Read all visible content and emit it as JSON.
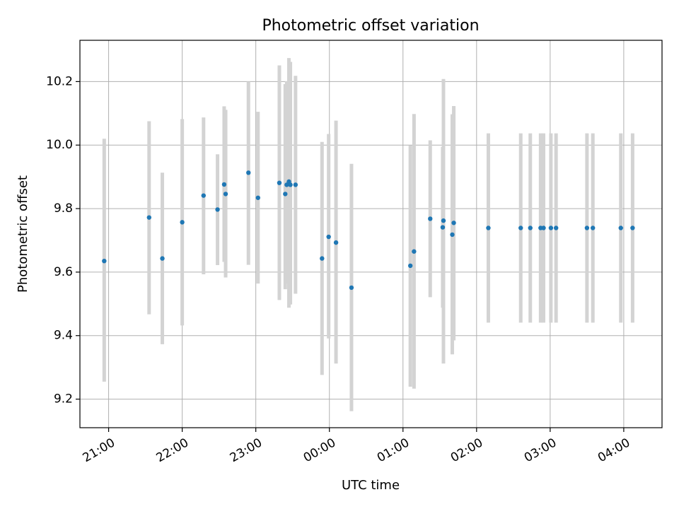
{
  "chart_data": {
    "type": "scatter",
    "title": "Photometric offset variation",
    "xlabel": "UTC time",
    "ylabel": "Photometric offset",
    "x_unit": "hours after 00:00 UTC (negative = previous evening)",
    "xlim": [
      -3.39,
      4.52
    ],
    "ylim": [
      9.11,
      10.33
    ],
    "grid": true,
    "x_ticks": [
      {
        "value": -3,
        "label": "21:00"
      },
      {
        "value": -2,
        "label": "22:00"
      },
      {
        "value": -1,
        "label": "23:00"
      },
      {
        "value": 0,
        "label": "00:00"
      },
      {
        "value": 1,
        "label": "01:00"
      },
      {
        "value": 2,
        "label": "02:00"
      },
      {
        "value": 3,
        "label": "03:00"
      },
      {
        "value": 4,
        "label": "04:00"
      }
    ],
    "y_ticks": [
      {
        "value": 9.2,
        "label": "9.2"
      },
      {
        "value": 9.4,
        "label": "9.4"
      },
      {
        "value": 9.6,
        "label": "9.6"
      },
      {
        "value": 9.8,
        "label": "9.8"
      },
      {
        "value": 10.0,
        "label": "10.0"
      },
      {
        "value": 10.2,
        "label": "10.2"
      }
    ],
    "colors": {
      "points": "#1f77b4",
      "error_bars": "#d3d3d3",
      "grid": "#b0b0b0"
    },
    "series": [
      {
        "points": [
          {
            "x": -3.06,
            "y": 9.635,
            "ylo": 9.255,
            "yhi": 10.02
          },
          {
            "x": -2.45,
            "y": 9.772,
            "ylo": 9.467,
            "yhi": 10.075
          },
          {
            "x": -2.27,
            "y": 9.643,
            "ylo": 9.373,
            "yhi": 9.913
          },
          {
            "x": -2.0,
            "y": 9.757,
            "ylo": 9.432,
            "yhi": 10.082
          },
          {
            "x": -1.71,
            "y": 9.841,
            "ylo": 9.593,
            "yhi": 10.087
          },
          {
            "x": -1.52,
            "y": 9.797,
            "ylo": 9.622,
            "yhi": 9.971
          },
          {
            "x": -1.43,
            "y": 9.876,
            "ylo": 9.632,
            "yhi": 10.122
          },
          {
            "x": -1.41,
            "y": 9.846,
            "ylo": 9.583,
            "yhi": 10.111
          },
          {
            "x": -1.1,
            "y": 9.913,
            "ylo": 9.623,
            "yhi": 10.2
          },
          {
            "x": -0.97,
            "y": 9.834,
            "ylo": 9.564,
            "yhi": 10.105
          },
          {
            "x": -0.68,
            "y": 9.881,
            "ylo": 9.512,
            "yhi": 10.251
          },
          {
            "x": -0.6,
            "y": 9.846,
            "ylo": 9.546,
            "yhi": 10.192
          },
          {
            "x": -0.58,
            "y": 9.875,
            "ylo": 9.564,
            "yhi": 10.201
          },
          {
            "x": -0.55,
            "y": 9.885,
            "ylo": 9.488,
            "yhi": 10.274
          },
          {
            "x": -0.53,
            "y": 9.875,
            "ylo": 9.498,
            "yhi": 10.262
          },
          {
            "x": -0.46,
            "y": 9.875,
            "ylo": 9.532,
            "yhi": 10.218
          },
          {
            "x": -0.1,
            "y": 9.643,
            "ylo": 9.276,
            "yhi": 10.01
          },
          {
            "x": -0.01,
            "y": 9.711,
            "ylo": 9.391,
            "yhi": 10.035
          },
          {
            "x": 0.09,
            "y": 9.693,
            "ylo": 9.312,
            "yhi": 10.077
          },
          {
            "x": 0.3,
            "y": 9.551,
            "ylo": 9.162,
            "yhi": 9.941
          },
          {
            "x": 1.1,
            "y": 9.62,
            "ylo": 9.239,
            "yhi": 9.999
          },
          {
            "x": 1.15,
            "y": 9.665,
            "ylo": 9.233,
            "yhi": 10.098
          },
          {
            "x": 1.37,
            "y": 9.768,
            "ylo": 9.521,
            "yhi": 10.015
          },
          {
            "x": 1.54,
            "y": 9.741,
            "ylo": 9.488,
            "yhi": 9.994
          },
          {
            "x": 1.55,
            "y": 9.762,
            "ylo": 9.312,
            "yhi": 10.208
          },
          {
            "x": 1.67,
            "y": 9.718,
            "ylo": 9.341,
            "yhi": 10.097
          },
          {
            "x": 1.69,
            "y": 9.755,
            "ylo": 9.385,
            "yhi": 10.123
          },
          {
            "x": 2.16,
            "y": 9.739,
            "ylo": 9.441,
            "yhi": 10.037
          },
          {
            "x": 2.6,
            "y": 9.739,
            "ylo": 9.441,
            "yhi": 10.037
          },
          {
            "x": 2.73,
            "y": 9.739,
            "ylo": 9.441,
            "yhi": 10.037
          },
          {
            "x": 2.87,
            "y": 9.739,
            "ylo": 9.441,
            "yhi": 10.037
          },
          {
            "x": 2.91,
            "y": 9.739,
            "ylo": 9.441,
            "yhi": 10.037
          },
          {
            "x": 3.01,
            "y": 9.739,
            "ylo": 9.441,
            "yhi": 10.037
          },
          {
            "x": 3.08,
            "y": 9.739,
            "ylo": 9.441,
            "yhi": 10.037
          },
          {
            "x": 3.5,
            "y": 9.739,
            "ylo": 9.441,
            "yhi": 10.037
          },
          {
            "x": 3.58,
            "y": 9.739,
            "ylo": 9.441,
            "yhi": 10.037
          },
          {
            "x": 3.96,
            "y": 9.739,
            "ylo": 9.441,
            "yhi": 10.037
          },
          {
            "x": 4.12,
            "y": 9.739,
            "ylo": 9.441,
            "yhi": 10.037
          }
        ]
      }
    ]
  }
}
